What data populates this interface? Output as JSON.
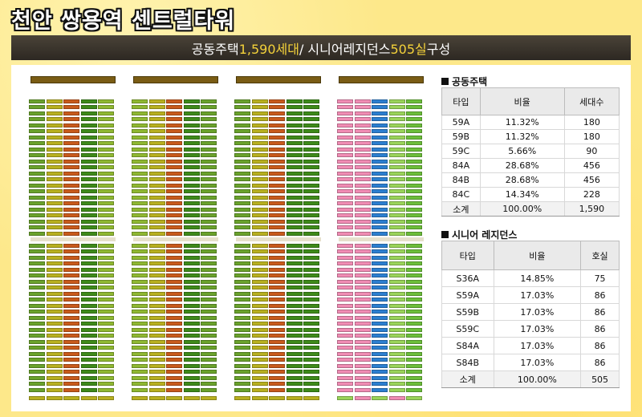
{
  "title": "천안 쌍용역 센트럴타워",
  "banner": {
    "prefix": "공동주택 ",
    "apt_count": "1,590세대",
    "middle": " / 시니어레지던스 ",
    "senior_count": "505실",
    "suffix": " 구성"
  },
  "apartment": {
    "heading": "공동주택",
    "columns": [
      "타입",
      "비율",
      "세대수"
    ],
    "rows": [
      {
        "type": "59A",
        "ratio": "11.32%",
        "count": "180"
      },
      {
        "type": "59B",
        "ratio": "11.32%",
        "count": "180"
      },
      {
        "type": "59C",
        "ratio": "5.66%",
        "count": "90"
      },
      {
        "type": "84A",
        "ratio": "28.68%",
        "count": "456"
      },
      {
        "type": "84B",
        "ratio": "28.68%",
        "count": "456"
      },
      {
        "type": "84C",
        "ratio": "14.34%",
        "count": "228"
      }
    ],
    "subtotal": {
      "label": "소계",
      "ratio": "100.00%",
      "count": "1,590"
    }
  },
  "senior": {
    "heading": "시니어 레지던스",
    "columns": [
      "타입",
      "비율",
      "호실"
    ],
    "rows": [
      {
        "type": "S36A",
        "ratio": "14.85%",
        "count": "75"
      },
      {
        "type": "S59A",
        "ratio": "17.03%",
        "count": "86"
      },
      {
        "type": "S59B",
        "ratio": "17.03%",
        "count": "86"
      },
      {
        "type": "S59C",
        "ratio": "17.03%",
        "count": "86"
      },
      {
        "type": "S84A",
        "ratio": "17.03%",
        "count": "86"
      },
      {
        "type": "S84B",
        "ratio": "17.03%",
        "count": "86"
      }
    ],
    "subtotal": {
      "label": "소계",
      "ratio": "100.00%",
      "count": "505"
    }
  },
  "colors": {
    "banner_highlight": "#f4d23a",
    "unit_green": "#6aa22c",
    "unit_olive": "#b8b020",
    "unit_orange": "#c85a1c",
    "unit_darkgreen": "#3e8a1a",
    "senior_pink": "#f08cb4",
    "senior_blue": "#2c7fd0",
    "senior_lightgreen": "#9ad45a"
  }
}
